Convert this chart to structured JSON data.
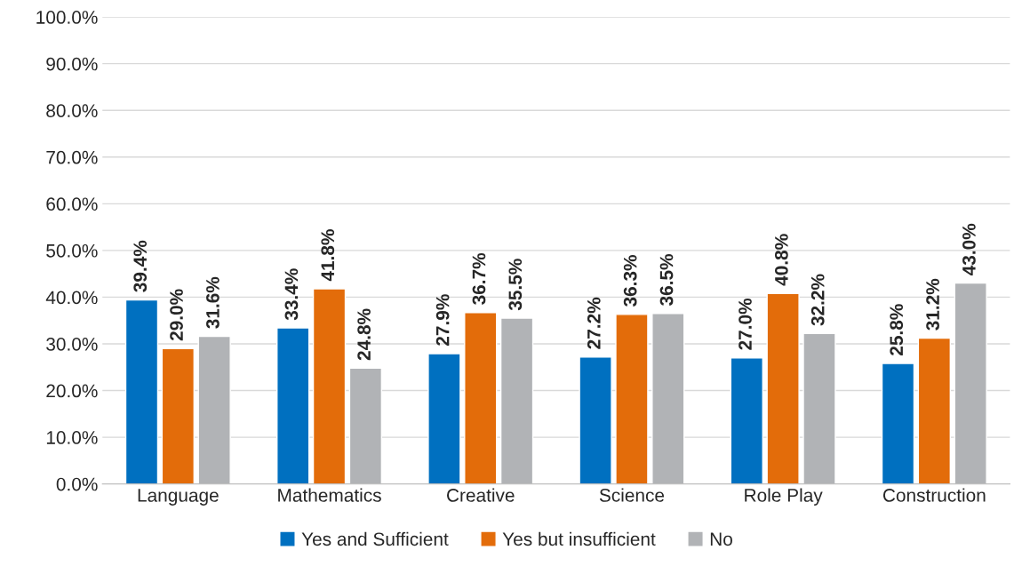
{
  "chart_data": {
    "type": "bar",
    "categories": [
      "Language",
      "Mathematics",
      "Creative",
      "Science",
      "Role Play",
      "Construction"
    ],
    "series": [
      {
        "name": "Yes and Sufficient",
        "color": "#0070c0",
        "values": [
          39.4,
          33.4,
          27.9,
          27.2,
          27.0,
          25.8
        ],
        "value_labels": [
          "39.4%",
          "33.4%",
          "27.9%",
          "27.2%",
          "27.0%",
          "25.8%"
        ]
      },
      {
        "name": "Yes but insufficient",
        "color": "#e36c0a",
        "values": [
          29.0,
          41.8,
          36.7,
          36.3,
          40.8,
          31.2
        ],
        "value_labels": [
          "29.0%",
          "41.8%",
          "36.7%",
          "36.3%",
          "40.8%",
          "31.2%"
        ]
      },
      {
        "name": "No",
        "color": "#b1b3b6",
        "values": [
          31.6,
          24.8,
          35.5,
          36.5,
          32.2,
          43.0
        ],
        "value_labels": [
          "31.6%",
          "24.8%",
          "35.5%",
          "36.5%",
          "32.2%",
          "43.0%"
        ]
      }
    ],
    "ylim": [
      0,
      100
    ],
    "yticks": [
      {
        "value": 0,
        "label": "0.0%"
      },
      {
        "value": 10,
        "label": "10.0%"
      },
      {
        "value": 20,
        "label": "20.0%"
      },
      {
        "value": 30,
        "label": "30.0%"
      },
      {
        "value": 40,
        "label": "40.0%"
      },
      {
        "value": 50,
        "label": "50.0%"
      },
      {
        "value": 60,
        "label": "60.0%"
      },
      {
        "value": 70,
        "label": "70.0%"
      },
      {
        "value": 80,
        "label": "80.0%"
      },
      {
        "value": 90,
        "label": "90.0%"
      },
      {
        "value": 100,
        "label": "100.0%"
      }
    ],
    "grid": "y",
    "legend": "bottom"
  }
}
